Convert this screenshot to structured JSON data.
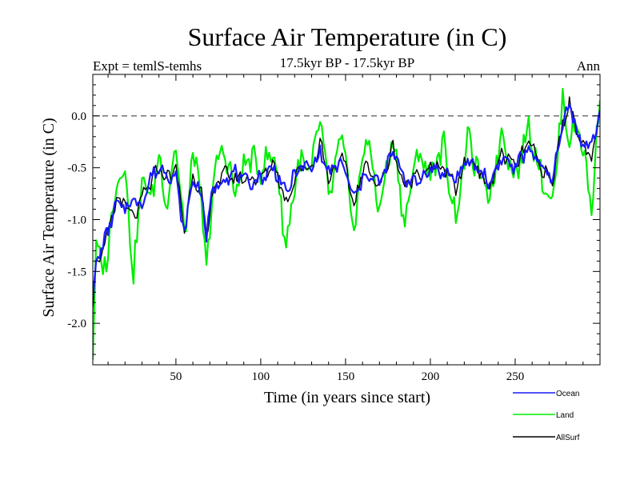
{
  "chart_data": {
    "type": "line",
    "title": "Surface Air Temperature (in C)",
    "subtitle": "17.5kyr BP - 17.5kyr BP",
    "expt_label": "Expt = temlS-temhs",
    "period_label": "Ann",
    "xlabel": "Time (in years since start)",
    "ylabel": "Surface Air Temperature (in C)",
    "xlim": [
      1,
      300
    ],
    "ylim": [
      -2.4,
      0.4
    ],
    "xticks": [
      50,
      100,
      150,
      200,
      250
    ],
    "xtick_labels": [
      "50",
      "100",
      "150",
      "200",
      "250"
    ],
    "yticks": [
      -2.0,
      -1.5,
      -1.0,
      -0.5,
      0.0
    ],
    "ytick_labels": [
      "-2.0",
      "-1.5",
      "-1.0",
      "-0.5",
      "0.0"
    ],
    "reference_line": 0.0,
    "legend_position": "bottom-right, below plot",
    "colors": {
      "ocean": "#1a1aff",
      "land": "#00ee00",
      "allsurf": "#000000",
      "reference": "#555555"
    },
    "series": [
      {
        "name": "Ocean",
        "color": "#1a1aff",
        "x": [
          1,
          3,
          6,
          10,
          15,
          20,
          25,
          30,
          35,
          40,
          45,
          50,
          55,
          60,
          65,
          68,
          72,
          78,
          85,
          92,
          100,
          108,
          115,
          122,
          130,
          135,
          140,
          148,
          155,
          162,
          170,
          178,
          185,
          192,
          200,
          208,
          215,
          222,
          228,
          235,
          242,
          250,
          258,
          265,
          272,
          278,
          282,
          288,
          295,
          300
        ],
        "values": [
          -1.75,
          -1.4,
          -1.3,
          -1.1,
          -0.85,
          -0.9,
          -0.8,
          -0.85,
          -0.6,
          -0.5,
          -0.55,
          -0.6,
          -1.15,
          -0.6,
          -0.75,
          -1.15,
          -0.7,
          -0.6,
          -0.55,
          -0.65,
          -0.6,
          -0.5,
          -0.75,
          -0.5,
          -0.5,
          -0.35,
          -0.55,
          -0.45,
          -0.8,
          -0.55,
          -0.65,
          -0.35,
          -0.6,
          -0.65,
          -0.5,
          -0.55,
          -0.6,
          -0.45,
          -0.5,
          -0.65,
          -0.4,
          -0.5,
          -0.3,
          -0.5,
          -0.6,
          -0.1,
          0.15,
          -0.25,
          -0.3,
          0.05
        ]
      },
      {
        "name": "Land",
        "color": "#00ee00",
        "x": [
          1,
          3,
          6,
          10,
          15,
          20,
          25,
          30,
          35,
          40,
          45,
          50,
          55,
          60,
          65,
          68,
          72,
          78,
          85,
          92,
          100,
          108,
          115,
          122,
          130,
          135,
          140,
          148,
          155,
          162,
          170,
          178,
          185,
          192,
          200,
          208,
          215,
          222,
          228,
          235,
          242,
          250,
          258,
          265,
          272,
          278,
          282,
          288,
          295,
          300
        ],
        "values": [
          -2.35,
          -1.2,
          -1.5,
          -1.3,
          -0.6,
          -0.5,
          -1.55,
          -0.6,
          -0.8,
          -0.4,
          -0.85,
          -0.25,
          -1.2,
          -0.35,
          -0.8,
          -1.55,
          -0.6,
          -0.3,
          -0.75,
          -0.4,
          -0.5,
          -0.35,
          -1.25,
          -0.45,
          -0.55,
          0.02,
          -0.8,
          -0.2,
          -1.1,
          -0.15,
          -0.9,
          -0.2,
          -1.05,
          -0.35,
          -0.55,
          -0.3,
          -1.0,
          -0.2,
          -0.55,
          -0.8,
          -0.15,
          -0.6,
          -0.1,
          -0.55,
          -0.85,
          0.15,
          -0.2,
          -0.1,
          -0.9,
          0.2
        ]
      },
      {
        "name": "AllSurf",
        "color": "#000000",
        "x": [
          1,
          3,
          6,
          10,
          15,
          20,
          25,
          30,
          35,
          40,
          45,
          50,
          55,
          60,
          65,
          68,
          72,
          78,
          85,
          92,
          100,
          108,
          115,
          122,
          130,
          135,
          140,
          148,
          155,
          162,
          170,
          178,
          185,
          192,
          200,
          208,
          215,
          222,
          228,
          235,
          242,
          250,
          258,
          265,
          272,
          278,
          282,
          288,
          295,
          300
        ],
        "values": [
          -1.85,
          -1.4,
          -1.35,
          -1.15,
          -0.8,
          -0.85,
          -1.0,
          -0.8,
          -0.65,
          -0.5,
          -0.6,
          -0.5,
          -1.1,
          -0.55,
          -0.75,
          -1.2,
          -0.7,
          -0.55,
          -0.6,
          -0.6,
          -0.6,
          -0.45,
          -0.85,
          -0.5,
          -0.5,
          -0.25,
          -0.6,
          -0.4,
          -0.85,
          -0.45,
          -0.7,
          -0.3,
          -0.7,
          -0.55,
          -0.5,
          -0.5,
          -0.7,
          -0.4,
          -0.5,
          -0.7,
          -0.35,
          -0.5,
          -0.25,
          -0.5,
          -0.65,
          -0.05,
          0.1,
          -0.2,
          -0.45,
          0.05
        ]
      }
    ]
  }
}
